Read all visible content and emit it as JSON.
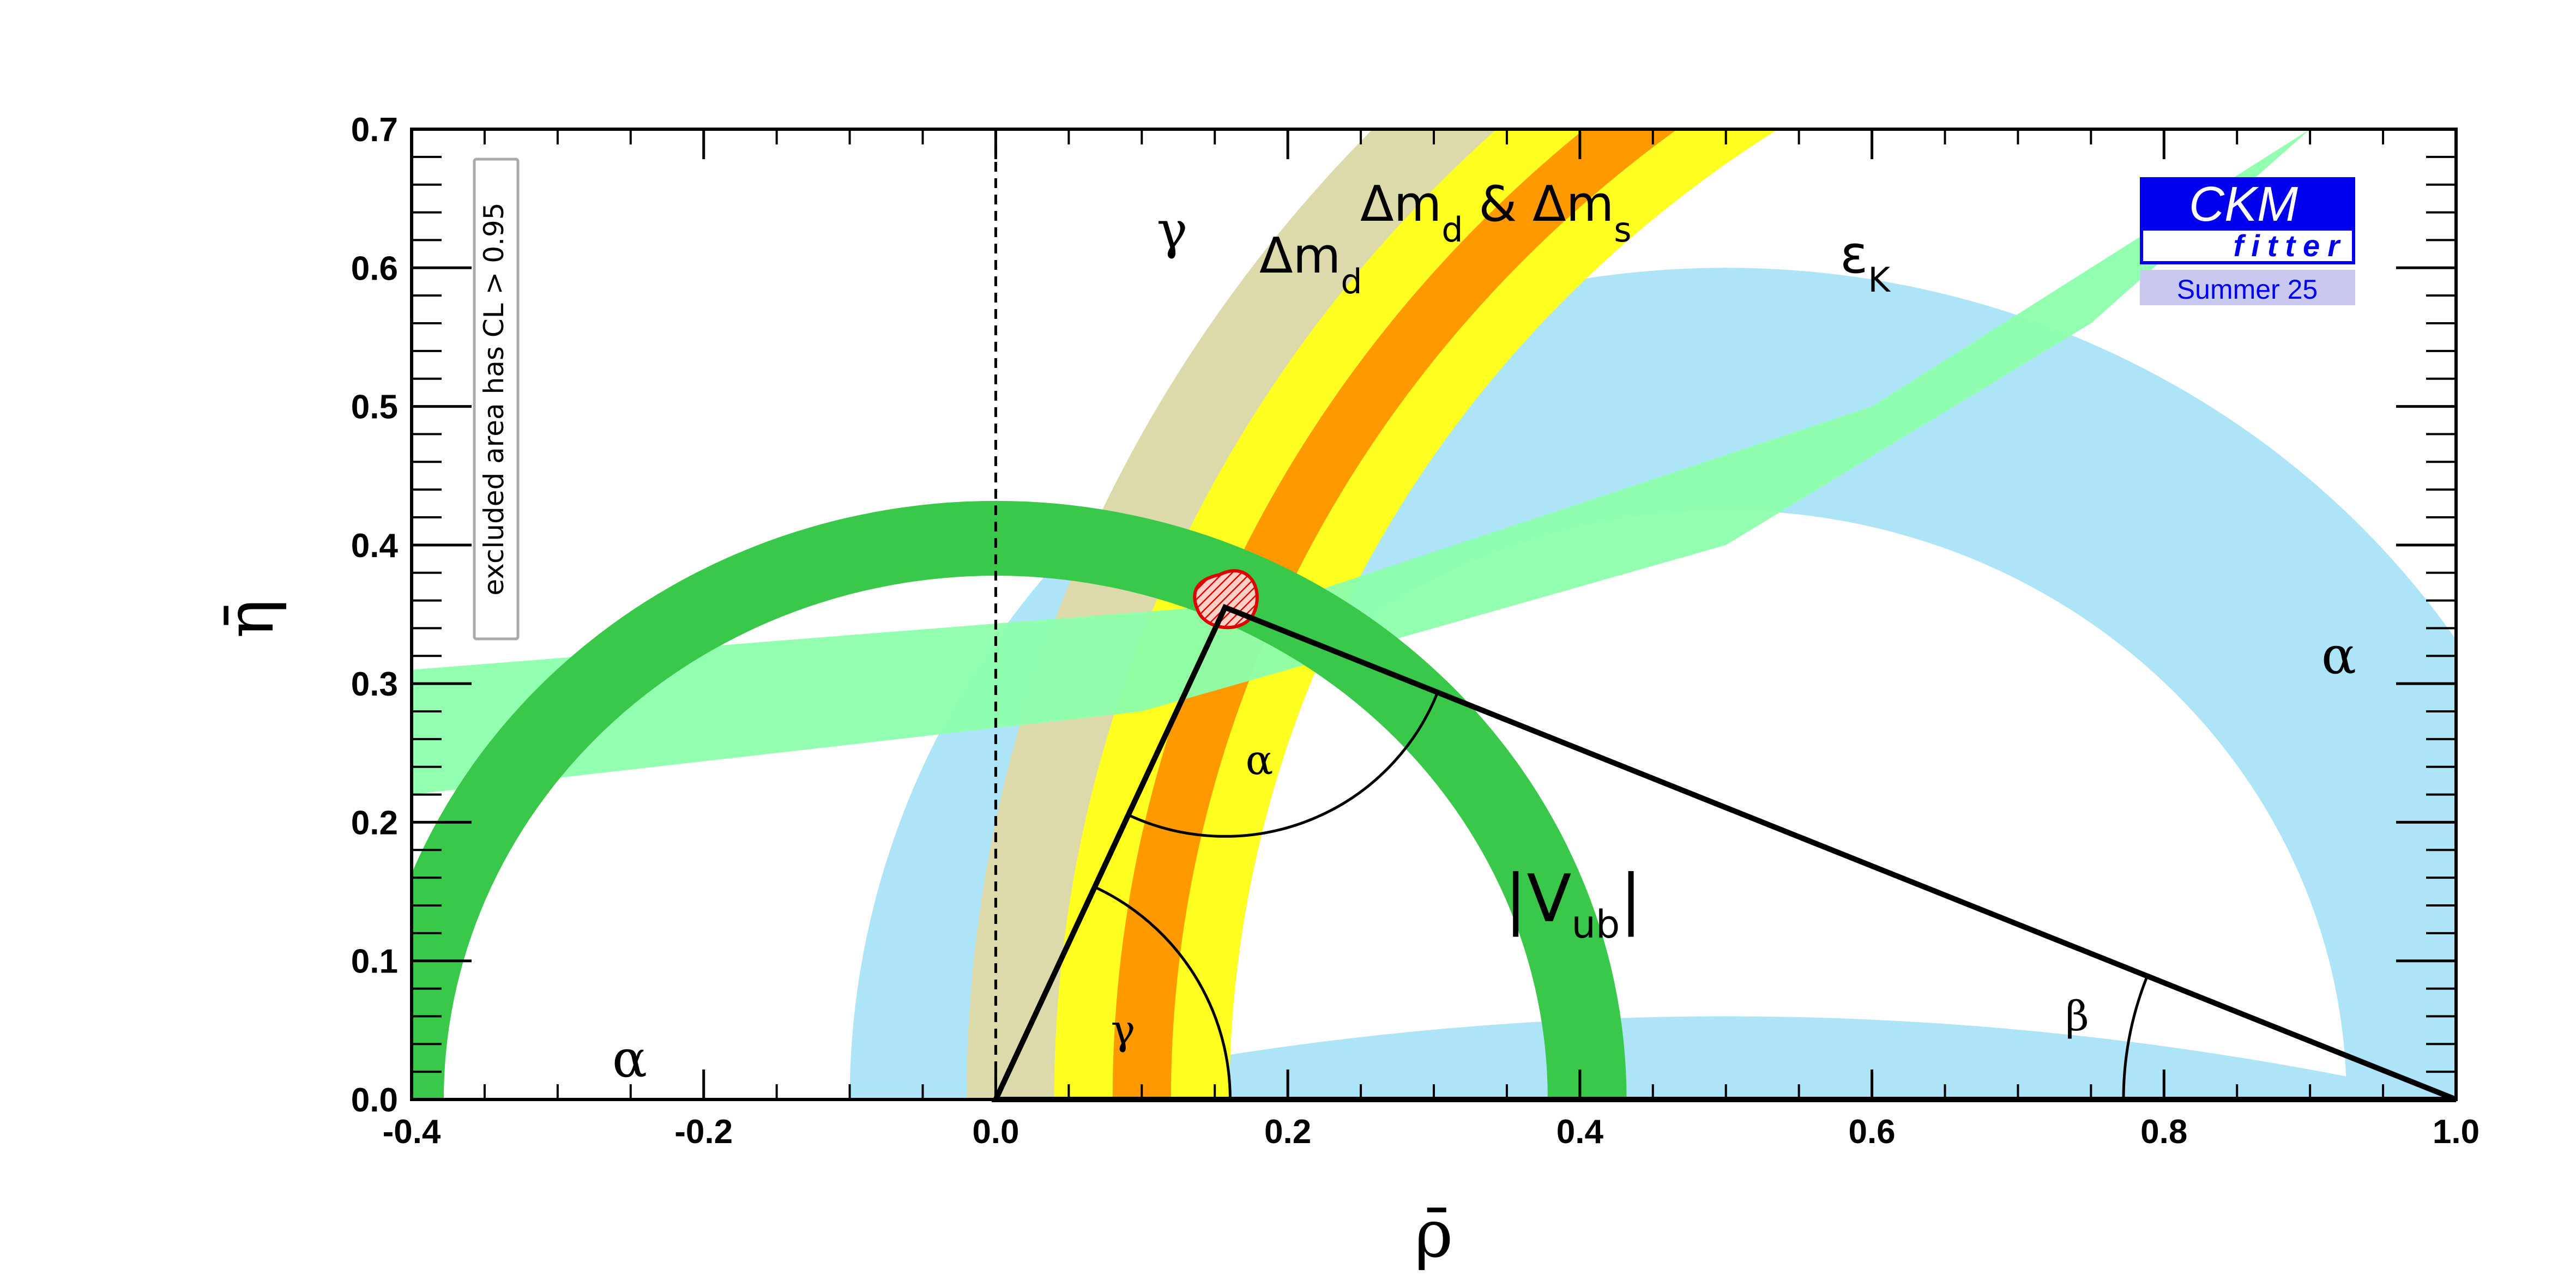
{
  "chart_data": {
    "type": "scatter",
    "title": "",
    "xlabel": "ρ̄",
    "ylabel": "η̄",
    "xlim": [
      -0.4,
      1.0
    ],
    "ylim": [
      0.0,
      0.7
    ],
    "x_ticks": [
      "-0.4",
      "-0.2",
      "0.0",
      "0.2",
      "0.4",
      "0.6",
      "0.8",
      "1.0"
    ],
    "y_ticks": [
      "0.0",
      "0.1",
      "0.2",
      "0.3",
      "0.4",
      "0.5",
      "0.6",
      "0.7"
    ],
    "grid": false,
    "note": "excluded area has CL > 0.95",
    "apex": {
      "rho": 0.157,
      "eta": 0.355
    },
    "triangle": [
      [
        0.0,
        0.0
      ],
      [
        1.0,
        0.0
      ],
      [
        0.157,
        0.355
      ]
    ],
    "constraints": [
      {
        "name": "Vub",
        "label": "|V",
        "sub": "ub",
        "color": "#39c84a",
        "center": [
          0.0,
          0.0
        ],
        "radius": [
          0.378,
          0.432
        ]
      },
      {
        "name": "alpha-upper",
        "label": "α",
        "color": "#aee4f8",
        "center": [
          0.5,
          0.0
        ],
        "radius": [
          0.425,
          0.6
        ]
      },
      {
        "name": "alpha-lower",
        "label": "α",
        "color": "#aee4f8",
        "eta_max_at_rho": [
          [
            0.0,
            0.0
          ],
          [
            0.5,
            0.06
          ],
          [
            1.0,
            0.0
          ]
        ]
      },
      {
        "name": "DeltaMd-DeltaMs",
        "color": "#ff9900",
        "center": [
          1.0,
          0.0
        ],
        "radius": [
          0.88,
          0.92
        ]
      },
      {
        "name": "DeltaMd-DeltaMs-wide",
        "color": "#ffff22",
        "center": [
          1.0,
          0.0
        ],
        "radius": [
          0.84,
          0.96
        ]
      },
      {
        "name": "DeltaMd",
        "color": "#dcdaaa",
        "center": [
          1.0,
          0.0
        ],
        "radius": [
          0.84,
          1.02
        ]
      },
      {
        "name": "epsK",
        "color": "#8dffad",
        "upper_edge": [
          [
            -0.4,
            0.31
          ],
          [
            0.2,
            0.36
          ],
          [
            0.6,
            0.5
          ],
          [
            0.9,
            0.7
          ]
        ],
        "lower_edge": [
          [
            -0.4,
            0.22
          ],
          [
            0.1,
            0.28
          ],
          [
            0.5,
            0.4
          ],
          [
            0.75,
            0.56
          ],
          [
            0.9,
            0.7
          ]
        ]
      }
    ],
    "band_labels": {
      "gamma": "γ",
      "dmd": "Δm",
      "dmd_sub": "d",
      "dmdms_1": "Δm",
      "dmdms_sub1": "d",
      "dmdms_amp": " & Δm",
      "dmdms_sub2": "s",
      "epsk": "ε",
      "epsk_sub": "K",
      "vub_pre": "|V",
      "vub_sub": "ub",
      "vub_post": "|",
      "alpha_left": "α",
      "alpha_right": "α"
    },
    "angle_labels": {
      "alpha": "α",
      "beta": "β",
      "gamma": "γ"
    },
    "colors": {
      "vub": "#39c84a",
      "alpha": "#aee4f8",
      "dm_inner": "#ff9900",
      "dm_outer": "#ffff22",
      "dmd": "#dcdaaa",
      "epsk": "#8dffad",
      "combined_fill": "#ffd2c8",
      "combined_stroke": "#e00000"
    }
  },
  "logo": {
    "title": "CKM",
    "subtitle": "fitter",
    "season": "Summer 25",
    "color": "#0000ee",
    "season_bg": "#c8c8f0"
  }
}
